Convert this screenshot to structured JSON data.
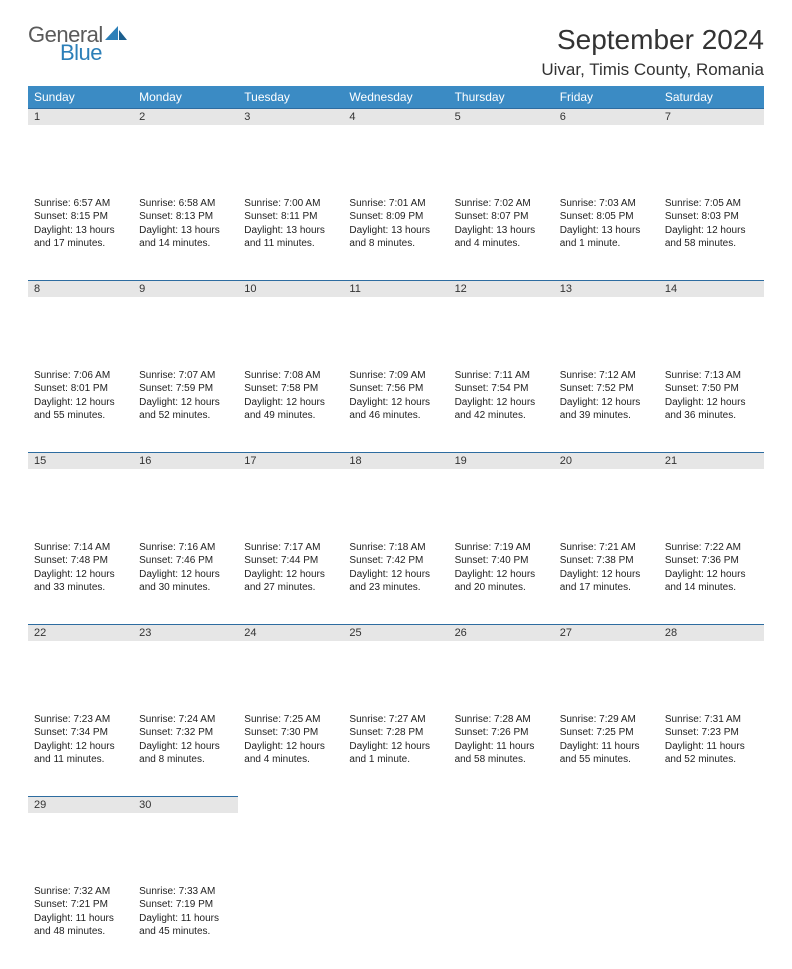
{
  "brand": {
    "general": "General",
    "blue": "Blue"
  },
  "title": "September 2024",
  "location": "Uivar, Timis County, Romania",
  "colors": {
    "header_bg": "#3b8bc4",
    "header_fg": "#ffffff",
    "row_divider": "#2d6ca0",
    "daynum_bg": "#e6e6e6",
    "logo_gray": "#5a5a5a",
    "logo_blue": "#2c7fb8",
    "text": "#222222",
    "page_bg": "#ffffff"
  },
  "typography": {
    "title_fontsize": 28,
    "location_fontsize": 17,
    "th_fontsize": 12,
    "daynum_fontsize": 11,
    "body_fontsize": 10
  },
  "days": [
    "Sunday",
    "Monday",
    "Tuesday",
    "Wednesday",
    "Thursday",
    "Friday",
    "Saturday"
  ],
  "weeks": [
    [
      {
        "n": "1",
        "sunrise": "Sunrise: 6:57 AM",
        "sunset": "Sunset: 8:15 PM",
        "day1": "Daylight: 13 hours",
        "day2": "and 17 minutes."
      },
      {
        "n": "2",
        "sunrise": "Sunrise: 6:58 AM",
        "sunset": "Sunset: 8:13 PM",
        "day1": "Daylight: 13 hours",
        "day2": "and 14 minutes."
      },
      {
        "n": "3",
        "sunrise": "Sunrise: 7:00 AM",
        "sunset": "Sunset: 8:11 PM",
        "day1": "Daylight: 13 hours",
        "day2": "and 11 minutes."
      },
      {
        "n": "4",
        "sunrise": "Sunrise: 7:01 AM",
        "sunset": "Sunset: 8:09 PM",
        "day1": "Daylight: 13 hours",
        "day2": "and 8 minutes."
      },
      {
        "n": "5",
        "sunrise": "Sunrise: 7:02 AM",
        "sunset": "Sunset: 8:07 PM",
        "day1": "Daylight: 13 hours",
        "day2": "and 4 minutes."
      },
      {
        "n": "6",
        "sunrise": "Sunrise: 7:03 AM",
        "sunset": "Sunset: 8:05 PM",
        "day1": "Daylight: 13 hours",
        "day2": "and 1 minute."
      },
      {
        "n": "7",
        "sunrise": "Sunrise: 7:05 AM",
        "sunset": "Sunset: 8:03 PM",
        "day1": "Daylight: 12 hours",
        "day2": "and 58 minutes."
      }
    ],
    [
      {
        "n": "8",
        "sunrise": "Sunrise: 7:06 AM",
        "sunset": "Sunset: 8:01 PM",
        "day1": "Daylight: 12 hours",
        "day2": "and 55 minutes."
      },
      {
        "n": "9",
        "sunrise": "Sunrise: 7:07 AM",
        "sunset": "Sunset: 7:59 PM",
        "day1": "Daylight: 12 hours",
        "day2": "and 52 minutes."
      },
      {
        "n": "10",
        "sunrise": "Sunrise: 7:08 AM",
        "sunset": "Sunset: 7:58 PM",
        "day1": "Daylight: 12 hours",
        "day2": "and 49 minutes."
      },
      {
        "n": "11",
        "sunrise": "Sunrise: 7:09 AM",
        "sunset": "Sunset: 7:56 PM",
        "day1": "Daylight: 12 hours",
        "day2": "and 46 minutes."
      },
      {
        "n": "12",
        "sunrise": "Sunrise: 7:11 AM",
        "sunset": "Sunset: 7:54 PM",
        "day1": "Daylight: 12 hours",
        "day2": "and 42 minutes."
      },
      {
        "n": "13",
        "sunrise": "Sunrise: 7:12 AM",
        "sunset": "Sunset: 7:52 PM",
        "day1": "Daylight: 12 hours",
        "day2": "and 39 minutes."
      },
      {
        "n": "14",
        "sunrise": "Sunrise: 7:13 AM",
        "sunset": "Sunset: 7:50 PM",
        "day1": "Daylight: 12 hours",
        "day2": "and 36 minutes."
      }
    ],
    [
      {
        "n": "15",
        "sunrise": "Sunrise: 7:14 AM",
        "sunset": "Sunset: 7:48 PM",
        "day1": "Daylight: 12 hours",
        "day2": "and 33 minutes."
      },
      {
        "n": "16",
        "sunrise": "Sunrise: 7:16 AM",
        "sunset": "Sunset: 7:46 PM",
        "day1": "Daylight: 12 hours",
        "day2": "and 30 minutes."
      },
      {
        "n": "17",
        "sunrise": "Sunrise: 7:17 AM",
        "sunset": "Sunset: 7:44 PM",
        "day1": "Daylight: 12 hours",
        "day2": "and 27 minutes."
      },
      {
        "n": "18",
        "sunrise": "Sunrise: 7:18 AM",
        "sunset": "Sunset: 7:42 PM",
        "day1": "Daylight: 12 hours",
        "day2": "and 23 minutes."
      },
      {
        "n": "19",
        "sunrise": "Sunrise: 7:19 AM",
        "sunset": "Sunset: 7:40 PM",
        "day1": "Daylight: 12 hours",
        "day2": "and 20 minutes."
      },
      {
        "n": "20",
        "sunrise": "Sunrise: 7:21 AM",
        "sunset": "Sunset: 7:38 PM",
        "day1": "Daylight: 12 hours",
        "day2": "and 17 minutes."
      },
      {
        "n": "21",
        "sunrise": "Sunrise: 7:22 AM",
        "sunset": "Sunset: 7:36 PM",
        "day1": "Daylight: 12 hours",
        "day2": "and 14 minutes."
      }
    ],
    [
      {
        "n": "22",
        "sunrise": "Sunrise: 7:23 AM",
        "sunset": "Sunset: 7:34 PM",
        "day1": "Daylight: 12 hours",
        "day2": "and 11 minutes."
      },
      {
        "n": "23",
        "sunrise": "Sunrise: 7:24 AM",
        "sunset": "Sunset: 7:32 PM",
        "day1": "Daylight: 12 hours",
        "day2": "and 8 minutes."
      },
      {
        "n": "24",
        "sunrise": "Sunrise: 7:25 AM",
        "sunset": "Sunset: 7:30 PM",
        "day1": "Daylight: 12 hours",
        "day2": "and 4 minutes."
      },
      {
        "n": "25",
        "sunrise": "Sunrise: 7:27 AM",
        "sunset": "Sunset: 7:28 PM",
        "day1": "Daylight: 12 hours",
        "day2": "and 1 minute."
      },
      {
        "n": "26",
        "sunrise": "Sunrise: 7:28 AM",
        "sunset": "Sunset: 7:26 PM",
        "day1": "Daylight: 11 hours",
        "day2": "and 58 minutes."
      },
      {
        "n": "27",
        "sunrise": "Sunrise: 7:29 AM",
        "sunset": "Sunset: 7:25 PM",
        "day1": "Daylight: 11 hours",
        "day2": "and 55 minutes."
      },
      {
        "n": "28",
        "sunrise": "Sunrise: 7:31 AM",
        "sunset": "Sunset: 7:23 PM",
        "day1": "Daylight: 11 hours",
        "day2": "and 52 minutes."
      }
    ],
    [
      {
        "n": "29",
        "sunrise": "Sunrise: 7:32 AM",
        "sunset": "Sunset: 7:21 PM",
        "day1": "Daylight: 11 hours",
        "day2": "and 48 minutes."
      },
      {
        "n": "30",
        "sunrise": "Sunrise: 7:33 AM",
        "sunset": "Sunset: 7:19 PM",
        "day1": "Daylight: 11 hours",
        "day2": "and 45 minutes."
      },
      null,
      null,
      null,
      null,
      null
    ]
  ]
}
